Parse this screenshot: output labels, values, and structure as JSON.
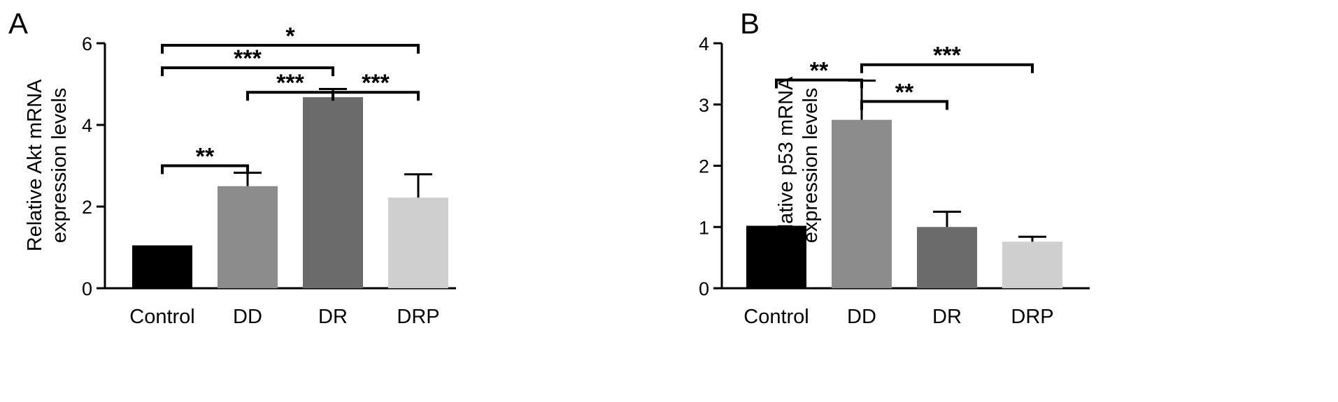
{
  "chart_data": [
    {
      "type": "bar",
      "panel": "A",
      "ylabel_line1": "Relative Akt mRNA",
      "ylabel_line2": "expression levels",
      "ylim": [
        0,
        6
      ],
      "yticks": [
        "0",
        "2",
        "4",
        "6"
      ],
      "categories": [
        "Control",
        "DD",
        "DR",
        "DRP"
      ],
      "values": [
        1.05,
        2.5,
        4.68,
        2.22
      ],
      "errors": [
        0.0,
        0.33,
        0.2,
        0.57
      ],
      "colors": [
        "#000000",
        "#8c8c8c",
        "#6b6b6b",
        "#cfcfcf"
      ],
      "significance": [
        {
          "from": 0,
          "to": 1,
          "y": 3.0,
          "label": "**"
        },
        {
          "from": 1,
          "to": 2,
          "y": 4.8,
          "label": "***"
        },
        {
          "from": 2,
          "to": 3,
          "y": 4.8,
          "label": "***"
        },
        {
          "from": 0,
          "to": 2,
          "y": 5.4,
          "label": "***"
        },
        {
          "from": 0,
          "to": 3,
          "y": 5.95,
          "label": "*"
        }
      ]
    },
    {
      "type": "bar",
      "panel": "B",
      "ylabel_line1": "Relative p53 mRNA",
      "ylabel_line2": "expression levels",
      "ylim": [
        0,
        4
      ],
      "yticks": [
        "0",
        "1",
        "2",
        "3",
        "4"
      ],
      "categories": [
        "Control",
        "DD",
        "DR",
        "DRP"
      ],
      "values": [
        1.02,
        2.75,
        1.0,
        0.76
      ],
      "errors": [
        0.0,
        0.64,
        0.25,
        0.08
      ],
      "colors": [
        "#000000",
        "#8c8c8c",
        "#6b6b6b",
        "#cfcfcf"
      ],
      "significance": [
        {
          "from": 0,
          "to": 1,
          "y": 3.4,
          "label": "**"
        },
        {
          "from": 1,
          "to": 2,
          "y": 3.05,
          "label": "**"
        },
        {
          "from": 1,
          "to": 3,
          "y": 3.65,
          "label": "***"
        }
      ]
    }
  ]
}
